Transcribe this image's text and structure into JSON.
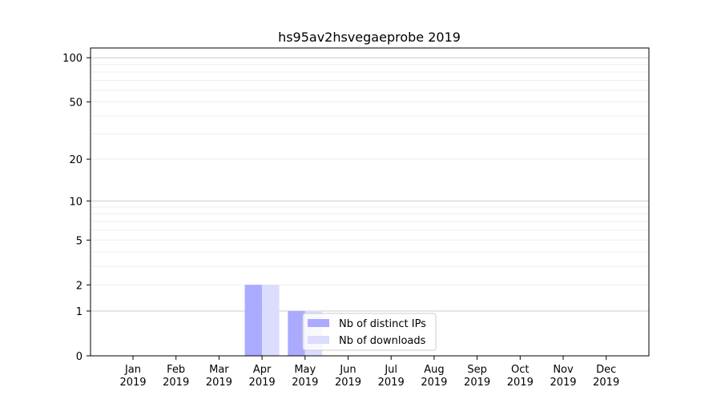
{
  "chart_data": {
    "type": "bar",
    "title": "hs95av2hsvegaeprobe 2019",
    "xlabel": "",
    "ylabel": "",
    "categories": [
      "Jan\n2019",
      "Feb\n2019",
      "Mar\n2019",
      "Apr\n2019",
      "May\n2019",
      "Jun\n2019",
      "Jul\n2019",
      "Aug\n2019",
      "Sep\n2019",
      "Oct\n2019",
      "Nov\n2019",
      "Dec\n2019"
    ],
    "series": [
      {
        "name": "Nb of distinct IPs",
        "color": "#aaaaff",
        "values": [
          0,
          0,
          0,
          2,
          1,
          0,
          0,
          0,
          0,
          0,
          0,
          0
        ]
      },
      {
        "name": "Nb of downloads",
        "color": "#dcdcff",
        "values": [
          0,
          0,
          0,
          2,
          1,
          0,
          0,
          0,
          0,
          0,
          0,
          0
        ]
      }
    ],
    "yscale": "log(1+y)",
    "yticks": [
      0,
      1,
      2,
      5,
      10,
      20,
      50,
      100
    ],
    "ylim": [
      0,
      116
    ],
    "grid": true,
    "legend_placement": "lower-center"
  }
}
